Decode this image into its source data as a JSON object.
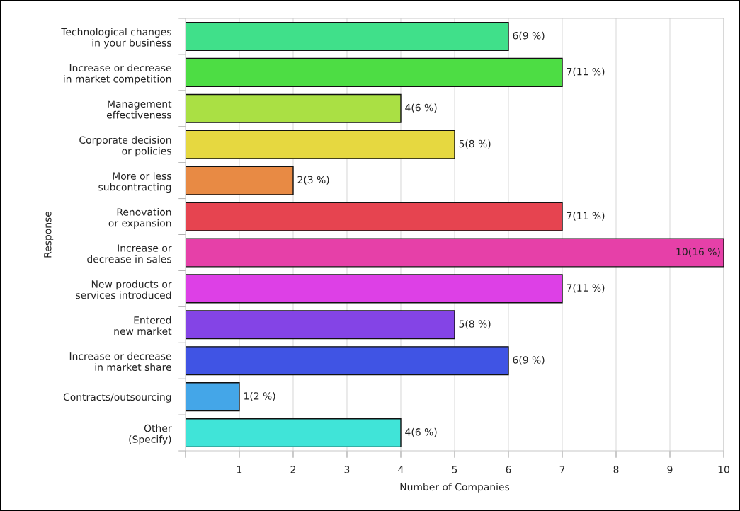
{
  "chart_data": {
    "type": "bar",
    "orientation": "horizontal",
    "categories": [
      "Technological changes\nin your business",
      "Increase or decrease\nin market competition",
      "Management\neffectiveness",
      "Corporate decision\nor policies",
      "More or less\nsubcontracting",
      "Renovation\nor expansion",
      "Increase or\ndecrease in sales",
      "New products or\nservices introduced",
      "Entered\nnew market",
      "Increase or decrease\nin market share",
      "Contracts/outsourcing",
      "Other\n(Specify)"
    ],
    "values": [
      6,
      7,
      4,
      5,
      2,
      7,
      10,
      7,
      5,
      6,
      1,
      4
    ],
    "value_labels": [
      "6(9 %)",
      "7(11 %)",
      "4(6 %)",
      "5(8 %)",
      "2(3 %)",
      "7(11 %)",
      "10(16 %)",
      "7(11 %)",
      "5(8 %)",
      "6(9 %)",
      "1(2 %)",
      "4(6 %)"
    ],
    "colors": [
      "#40e08a",
      "#4ddd44",
      "#aae044",
      "#e6d840",
      "#e88a44",
      "#e64450",
      "#e640a8",
      "#dd40e6",
      "#8444e6",
      "#4054e4",
      "#44a6e8",
      "#40e4d8"
    ],
    "xlim": [
      0,
      10
    ],
    "xticks": [
      {
        "value": 0,
        "label": null
      },
      1,
      2,
      3,
      4,
      5,
      6,
      7,
      8,
      9,
      10
    ],
    "xlabel": "Number of Companies",
    "ylabel": "Response",
    "grid": "x",
    "legend": false
  }
}
